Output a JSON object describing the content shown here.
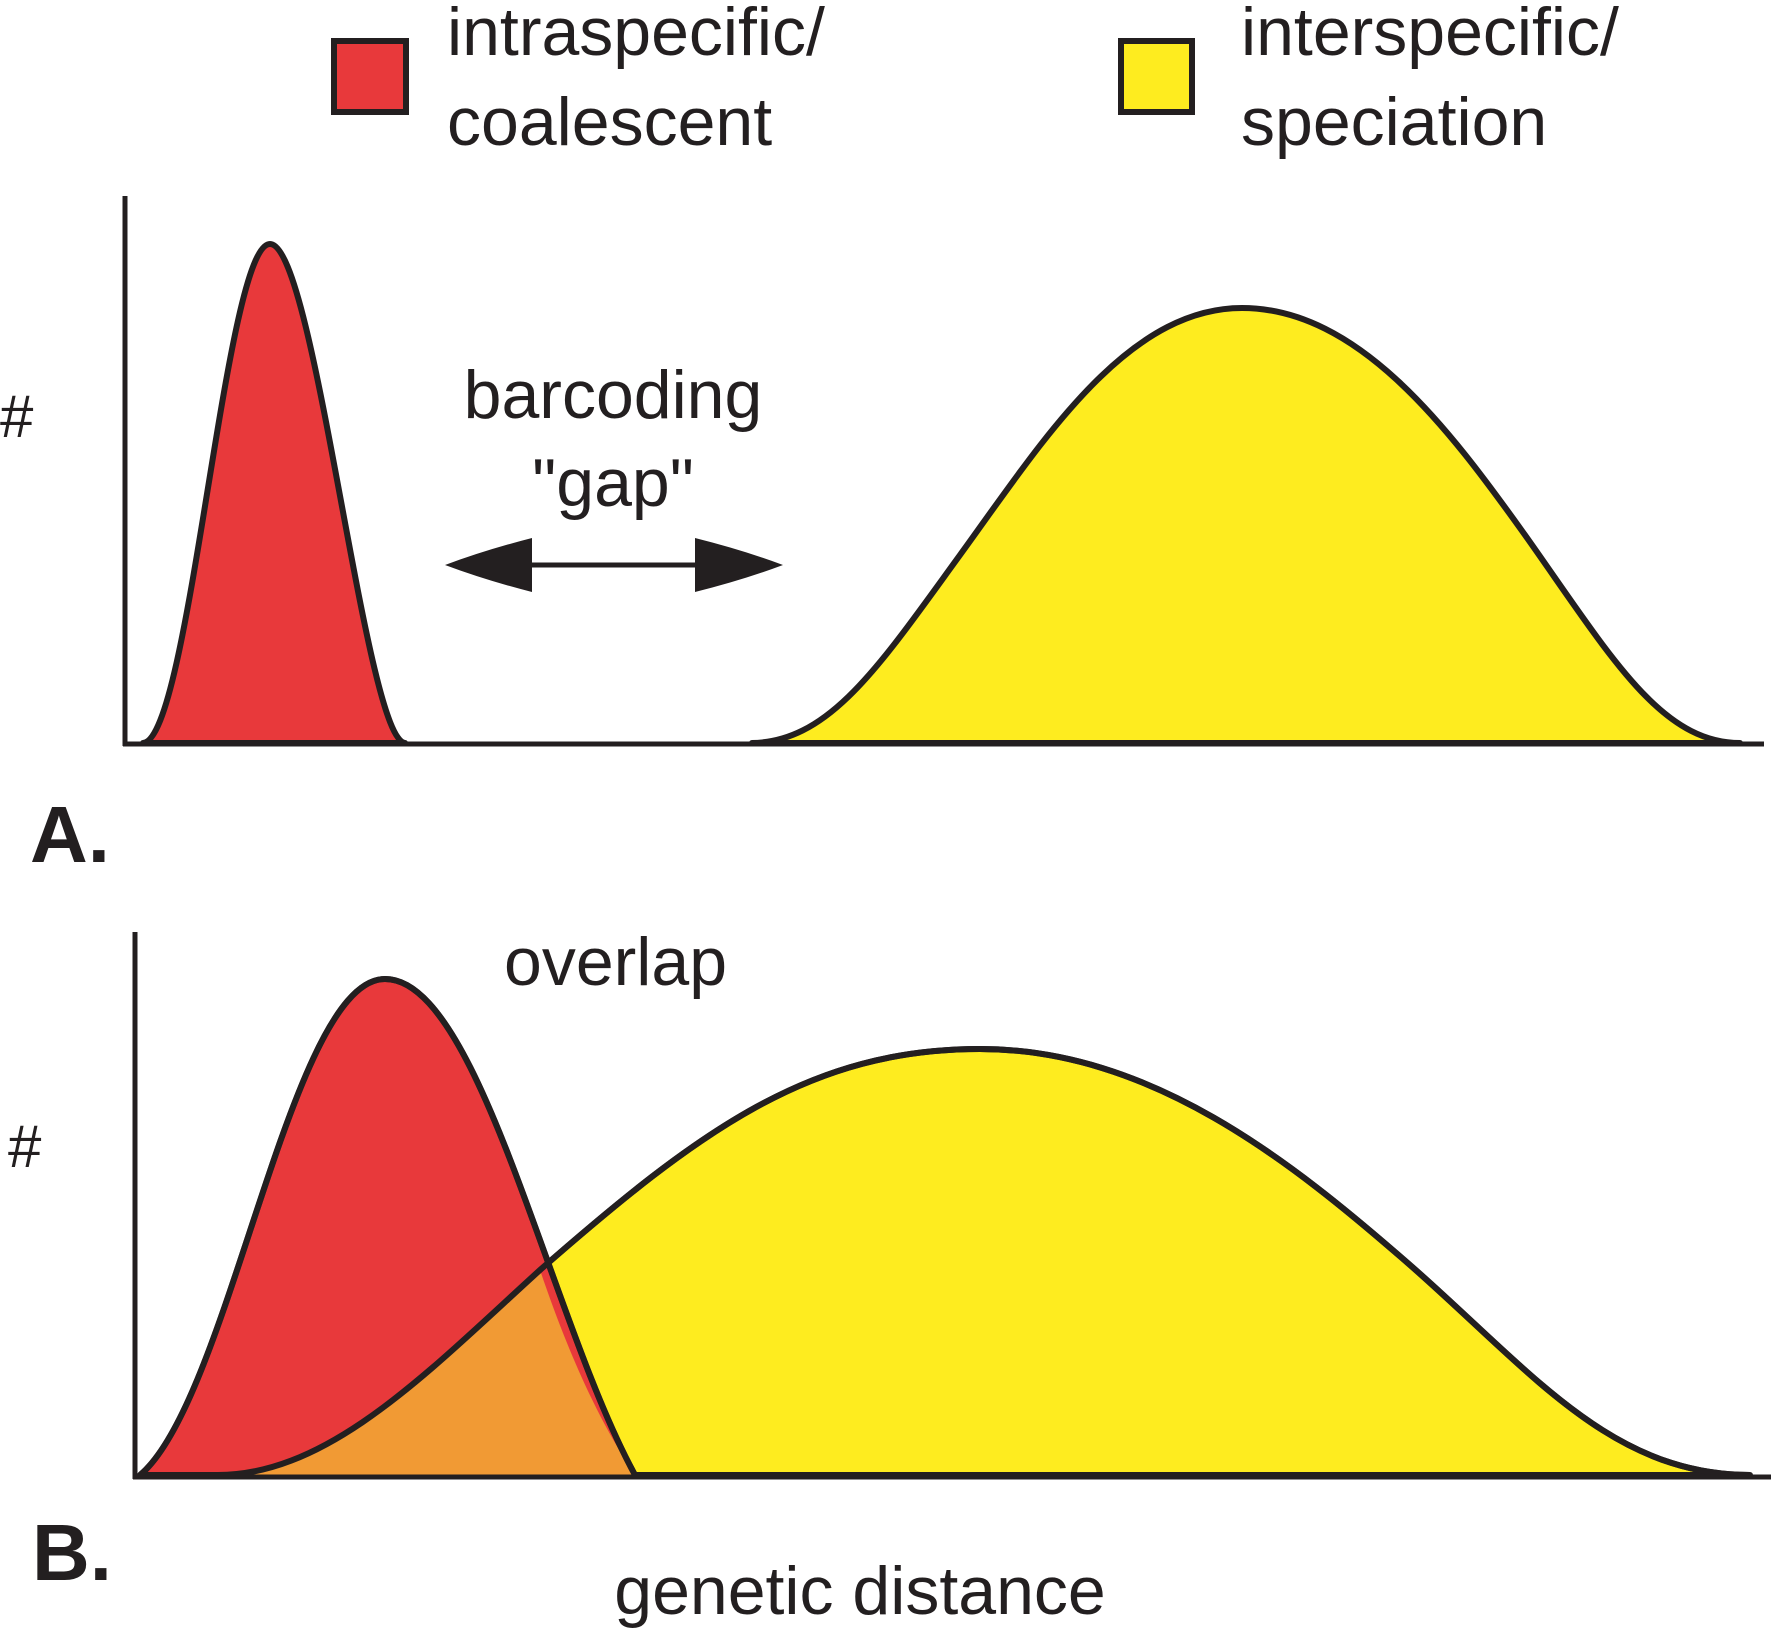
{
  "legend": {
    "items": [
      {
        "line1": "intraspecific/",
        "line2": "coalescent",
        "color": "#e8393b"
      },
      {
        "line1": "interspecific/",
        "line2": "speciation",
        "color": "#feec1f"
      }
    ]
  },
  "colors": {
    "overlap": "#f19a34",
    "outline": "#231f20"
  },
  "panels": {
    "a": {
      "letter": "A.",
      "ylabel": "#",
      "gap_line1": "barcoding",
      "gap_line2": "\"gap\""
    },
    "b": {
      "letter": "B.",
      "ylabel": "#",
      "overlap_label": "overlap"
    }
  },
  "xlabel": "genetic distance"
}
